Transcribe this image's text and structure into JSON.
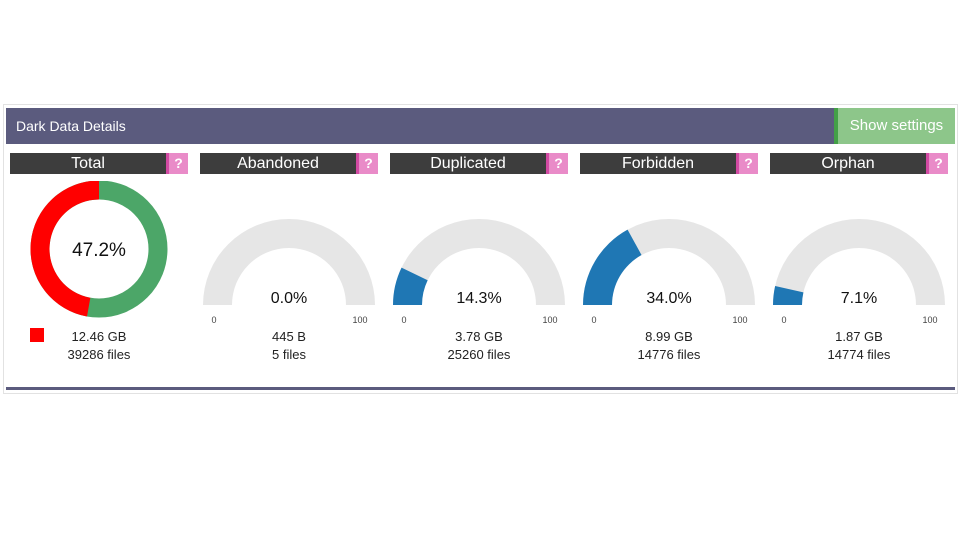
{
  "panel": {
    "title": "Dark Data Details",
    "settings_label": "Show settings",
    "help_label": "?"
  },
  "total": {
    "label": "Total",
    "percent_text": "47.2%",
    "percent": 47.2,
    "size": "12.46 GB",
    "files": "39286 files",
    "colors": {
      "filled": "#ff0000",
      "rest": "#4ca668"
    }
  },
  "gauge_scale": {
    "min": "0",
    "max": "100"
  },
  "gauges": [
    {
      "label": "Abandoned",
      "percent_text": "0.0%",
      "percent": 0.0,
      "size": "445 B",
      "files": "5 files"
    },
    {
      "label": "Duplicated",
      "percent_text": "14.3%",
      "percent": 14.3,
      "size": "3.78 GB",
      "files": "25260 files"
    },
    {
      "label": "Forbidden",
      "percent_text": "34.0%",
      "percent": 34.0,
      "size": "8.99 GB",
      "files": "14776 files"
    },
    {
      "label": "Orphan",
      "percent_text": "7.1%",
      "percent": 7.1,
      "size": "1.87 GB",
      "files": "14774 files"
    }
  ],
  "colors": {
    "gauge_fill": "#1f77b4",
    "gauge_track": "#e6e6e6"
  }
}
